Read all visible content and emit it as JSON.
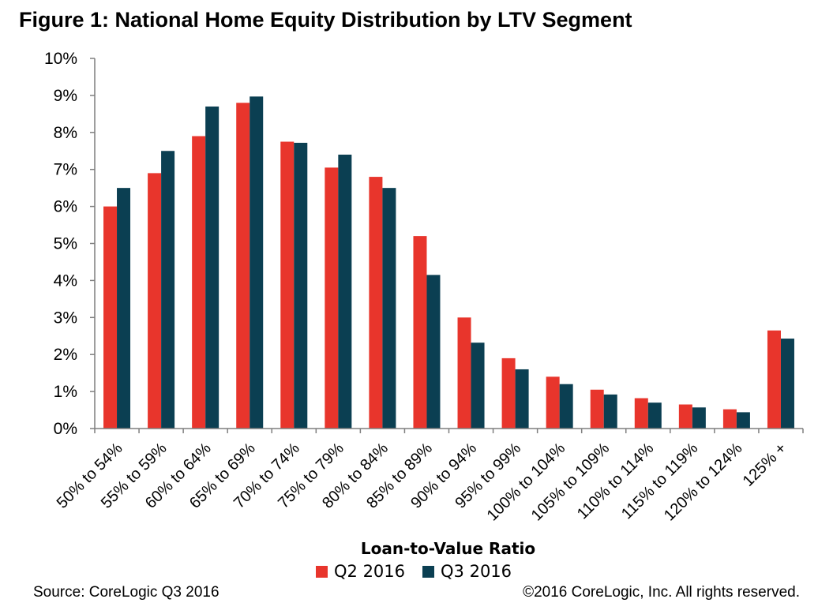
{
  "title": "Figure 1: National Home Equity Distribution by LTV Segment",
  "source": "Source: CoreLogic Q3 2016",
  "copyright": "©2016 CoreLogic, Inc. All rights reserved.",
  "colors": {
    "q2": "#e8352c",
    "q3": "#0b3f52",
    "axis": "#7f7f7f"
  },
  "chart_data": {
    "type": "bar",
    "title": "Figure 1: National Home Equity Distribution by LTV Segment",
    "xlabel": "Loan-to-Value Ratio",
    "ylabel": "",
    "ylim": [
      0,
      10
    ],
    "yticks": [
      "0%",
      "1%",
      "2%",
      "3%",
      "4%",
      "5%",
      "6%",
      "7%",
      "8%",
      "9%",
      "10%"
    ],
    "grid": false,
    "legend_position": "bottom",
    "categories": [
      "50% to 54%",
      "55% to 59%",
      "60% to 64%",
      "65% to 69%",
      "70% to 74%",
      "75% to 79%",
      "80% to 84%",
      "85% to 89%",
      "90% to 94%",
      "95% to 99%",
      "100% to 104%",
      "105% to 109%",
      "110% to 114%",
      "115% to 119%",
      "120% to 124%",
      "125% +"
    ],
    "series": [
      {
        "name": "Q2 2016",
        "values": [
          6.0,
          6.9,
          7.9,
          8.8,
          7.75,
          7.05,
          6.8,
          5.2,
          3.0,
          1.9,
          1.4,
          1.05,
          0.82,
          0.65,
          0.52,
          2.65
        ]
      },
      {
        "name": "Q3 2016",
        "values": [
          6.5,
          7.5,
          8.7,
          8.97,
          7.72,
          7.4,
          6.5,
          4.15,
          2.32,
          1.6,
          1.2,
          0.92,
          0.7,
          0.57,
          0.44,
          2.43
        ]
      }
    ]
  }
}
